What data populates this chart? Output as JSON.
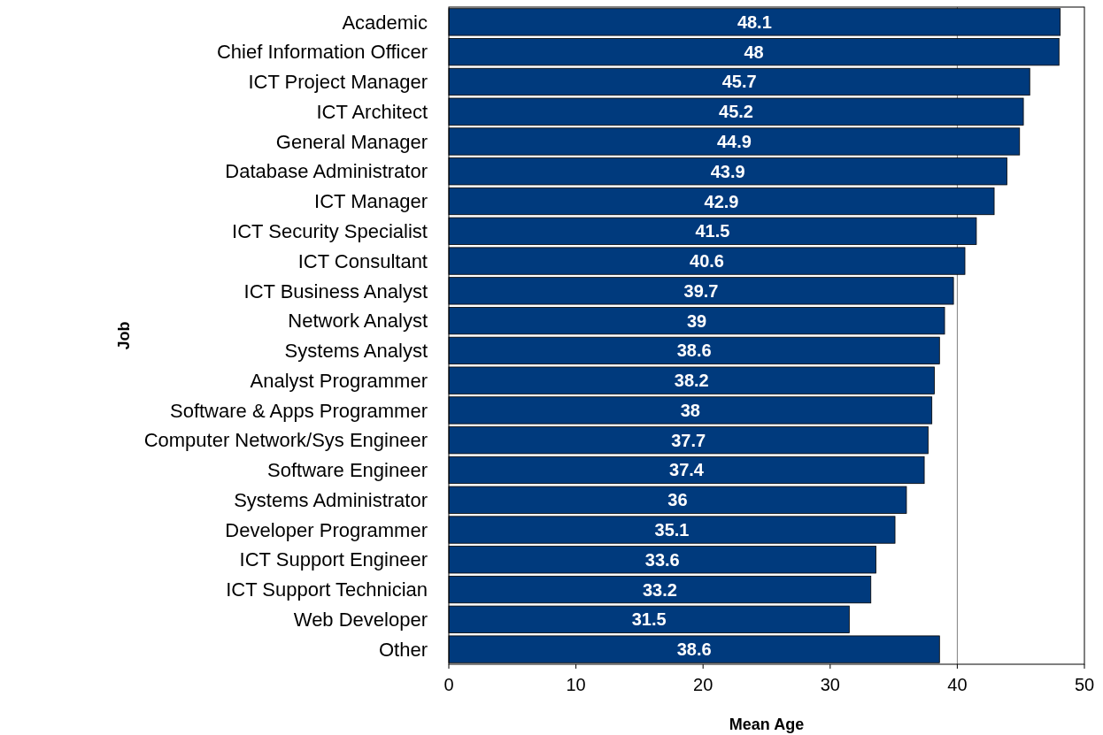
{
  "chart_data": {
    "type": "bar",
    "orientation": "horizontal",
    "xlabel": "Mean Age",
    "ylabel": "Job",
    "categories": [
      "Academic",
      "Chief Information Officer",
      "ICT Project Manager",
      "ICT Architect",
      "General Manager",
      "Database Administrator",
      "ICT Manager",
      "ICT Security Specialist",
      "ICT Consultant",
      "ICT Business Analyst",
      "Network Analyst",
      "Systems Analyst",
      "Analyst Programmer",
      "Software & Apps Programmer",
      "Computer Network/Sys Engineer",
      "Software Engineer",
      "Systems Administrator",
      "Developer Programmer",
      "ICT Support Engineer",
      "ICT Support Technician",
      "Web Developer",
      "Other"
    ],
    "values": [
      48.1,
      48,
      45.7,
      45.2,
      44.9,
      43.9,
      42.9,
      41.5,
      40.6,
      39.7,
      39,
      38.6,
      38.2,
      38,
      37.7,
      37.4,
      36,
      35.1,
      33.6,
      33.2,
      31.5,
      38.6
    ],
    "color": "#003a7d",
    "xlim": [
      0,
      50
    ],
    "xticks": [
      0,
      10,
      20,
      30,
      40,
      50
    ],
    "data_labels": true,
    "ref_lines": [
      {
        "axis": "x",
        "value": 40,
        "color": "#808080"
      }
    ],
    "grid": false
  }
}
